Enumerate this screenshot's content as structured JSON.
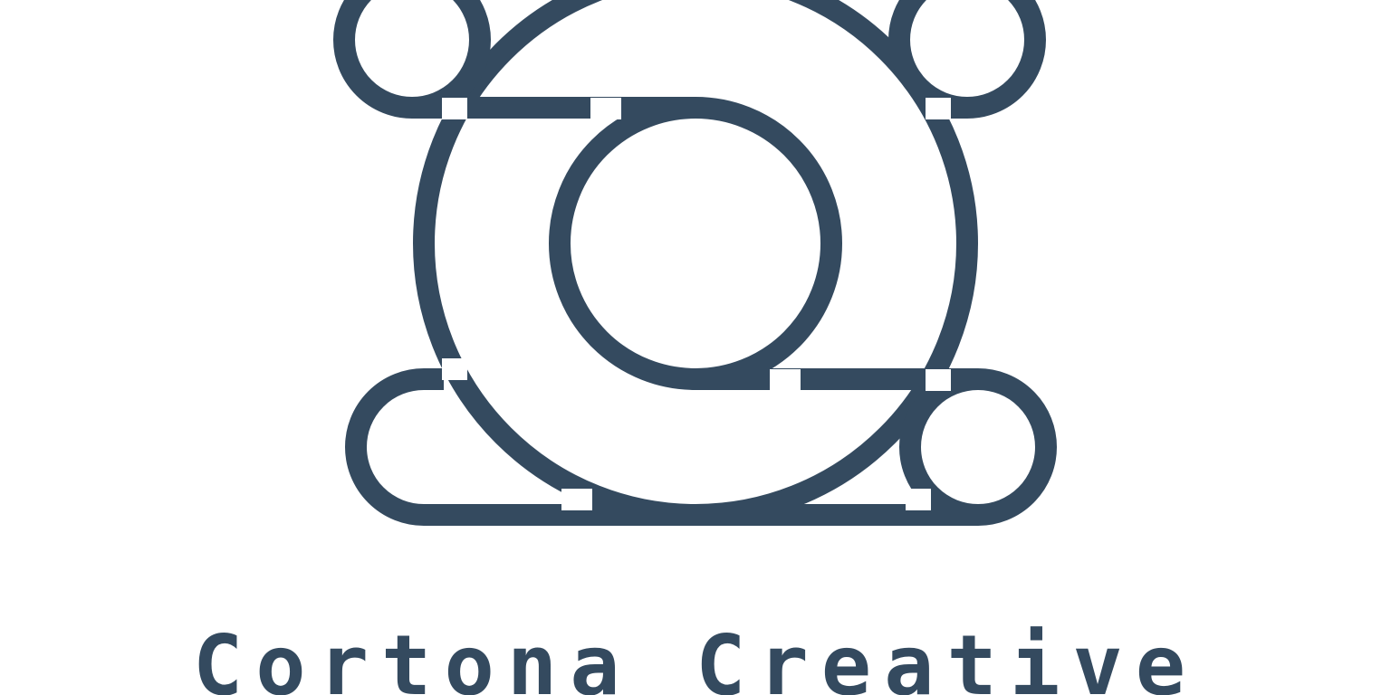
{
  "brand": {
    "name": "Cortona Creative",
    "color": "#344a5f",
    "background": "#ffffff",
    "logo_icon": "rolling-loop-logo-icon"
  }
}
